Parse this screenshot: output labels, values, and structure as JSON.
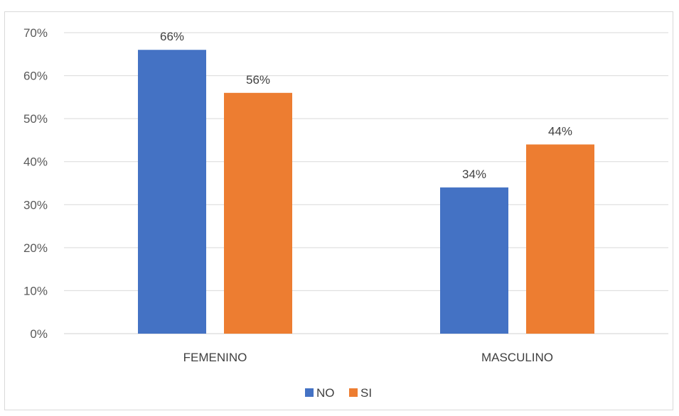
{
  "chart_data": {
    "type": "bar",
    "title": "",
    "xlabel": "",
    "ylabel": "",
    "categories": [
      "FEMENINO",
      "MASCULINO"
    ],
    "series": [
      {
        "name": "NO",
        "values": [
          66,
          34
        ],
        "labels": [
          "66%",
          "34%"
        ],
        "color": "#4472C4"
      },
      {
        "name": "SI",
        "values": [
          56,
          44
        ],
        "labels": [
          "56%",
          "44%"
        ],
        "color": "#ED7D31"
      }
    ],
    "ylim": [
      0,
      70
    ],
    "yticks": [
      0,
      10,
      20,
      30,
      40,
      50,
      60,
      70
    ],
    "ytick_labels": [
      "0%",
      "10%",
      "20%",
      "30%",
      "40%",
      "50%",
      "60%",
      "70%"
    ],
    "grid": true,
    "legend_position": "bottom"
  }
}
